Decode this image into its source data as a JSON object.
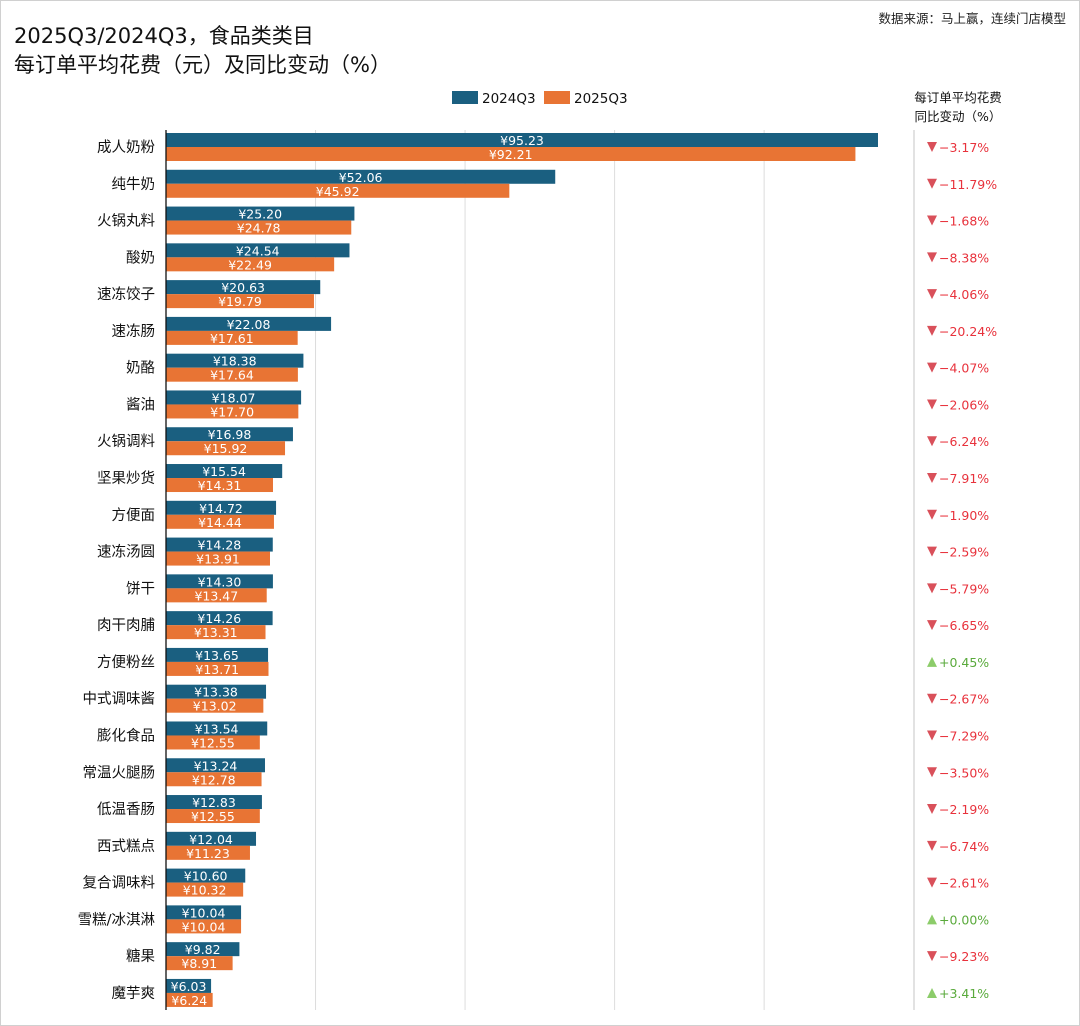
{
  "source": "数据来源：马上赢，连续门店模型",
  "chart_data": {
    "type": "bar",
    "orientation": "horizontal",
    "title": "2025Q3/2024Q3，食品类类目",
    "subtitle": "每订单平均花费（元）及同比变动（%）",
    "change_header": [
      "每订单平均花费",
      "同比变动（%）"
    ],
    "legend_position": "top",
    "xlim": [
      0,
      120
    ],
    "grid": true,
    "value_prefix": "¥",
    "categories": [
      "成人奶粉",
      "纯牛奶",
      "火锅丸料",
      "酸奶",
      "速冻饺子",
      "速冻肠",
      "奶酪",
      "酱油",
      "火锅调料",
      "坚果炒货",
      "方便面",
      "速冻汤圆",
      "饼干",
      "肉干肉脯",
      "方便粉丝",
      "中式调味酱",
      "膨化食品",
      "常温火腿肠",
      "低温香肠",
      "西式糕点",
      "复合调味料",
      "雪糕/冰淇淋",
      "糖果",
      "魔芋爽"
    ],
    "series": [
      {
        "name": "2024Q3",
        "color": "#1a5f80",
        "values": [
          95.23,
          52.06,
          25.2,
          24.54,
          20.63,
          22.08,
          18.38,
          18.07,
          16.98,
          15.54,
          14.72,
          14.28,
          14.3,
          14.26,
          13.65,
          13.38,
          13.54,
          13.24,
          12.83,
          12.04,
          10.6,
          10.04,
          9.82,
          6.03
        ]
      },
      {
        "name": "2025Q3",
        "color": "#e87434",
        "values": [
          92.21,
          45.92,
          24.78,
          22.49,
          19.79,
          17.61,
          17.64,
          17.7,
          15.92,
          14.31,
          14.44,
          13.91,
          13.47,
          13.31,
          13.71,
          13.02,
          12.55,
          12.78,
          12.55,
          11.23,
          10.32,
          10.04,
          8.91,
          6.24
        ]
      }
    ],
    "yoy_change": [
      "-3.17%",
      "-11.79%",
      "-1.68%",
      "-8.38%",
      "-4.06%",
      "-20.24%",
      "-4.07%",
      "-2.06%",
      "-6.24%",
      "-7.91%",
      "-1.90%",
      "-2.59%",
      "-5.79%",
      "-6.65%",
      "+0.45%",
      "-2.67%",
      "-7.29%",
      "-3.50%",
      "-2.19%",
      "-6.74%",
      "-2.61%",
      "+0.00%",
      "-9.23%",
      "+3.41%"
    ],
    "colors": {
      "down": "#e8323c",
      "down_icon": "#d9505a",
      "up": "#5aaa3c",
      "up_icon": "#8ccc6a"
    }
  }
}
